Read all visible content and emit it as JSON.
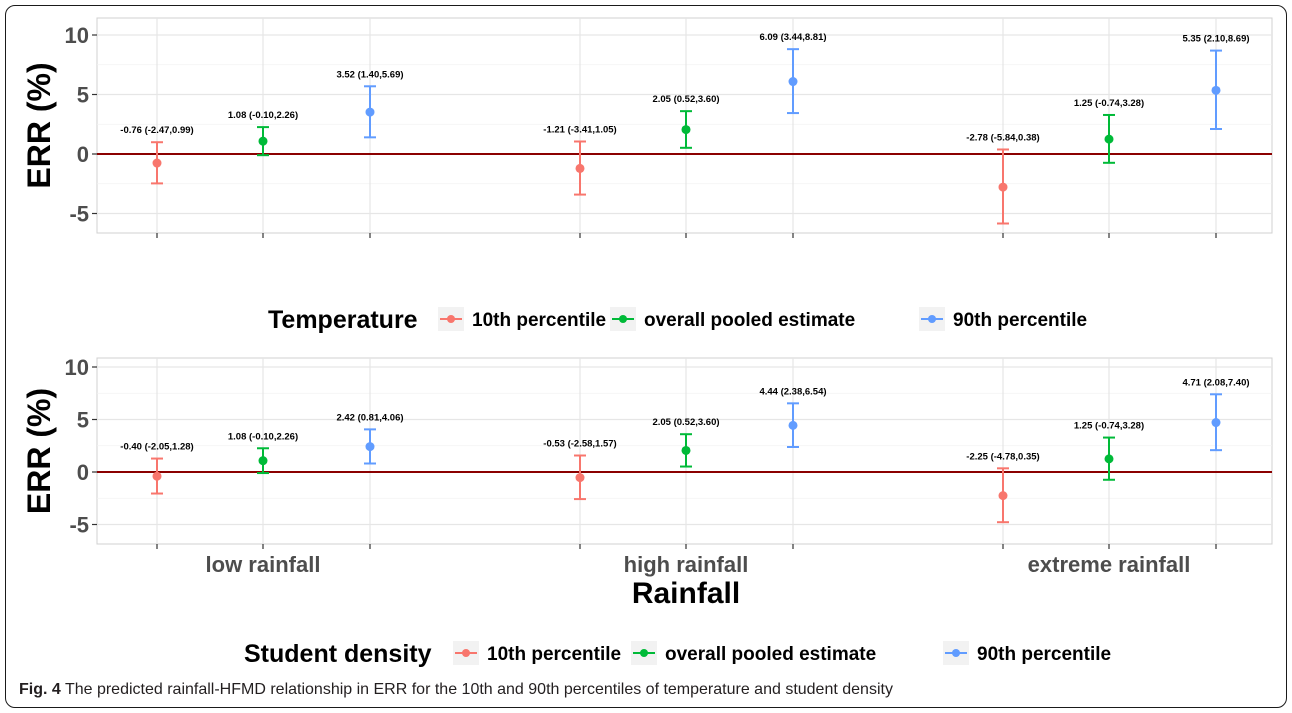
{
  "caption": {
    "label": "Fig. 4",
    "text": "The predicted rainfall-HFMD relationship in ERR for the 10th and 90th percentiles of temperature and student density"
  },
  "x_axis_title": "Rainfall",
  "colors": {
    "low": "#f8766d",
    "mid": "#00ba38",
    "high": "#619cff",
    "ref_line": "#8b0000"
  },
  "chart_data": [
    {
      "type": "scatter",
      "subtype": "point-with-error-bars",
      "categories": [
        "low rainfall",
        "high rainfall",
        "extreme rainfall"
      ],
      "ylabel": "ERR (%)",
      "ylim": [
        -7,
        11
      ],
      "yticks": [
        -5,
        0,
        5,
        10
      ],
      "grid": true,
      "show_xticklabels": false,
      "reference_line": 0,
      "legend": {
        "title": "Temperature",
        "position": "bottom"
      },
      "series": [
        {
          "name": "10th percentile",
          "color": "#f8766d",
          "values": [
            -0.76,
            -1.21,
            -2.78
          ],
          "lower": [
            -2.47,
            -3.41,
            -5.84
          ],
          "upper": [
            0.99,
            1.05,
            0.38
          ],
          "labels": [
            "-0.76 (-2.47,0.99)",
            "-1.21 (-3.41,1.05)",
            "-2.78 (-5.84,0.38)"
          ]
        },
        {
          "name": "overall pooled estimate",
          "color": "#00ba38",
          "values": [
            1.08,
            2.05,
            1.25
          ],
          "lower": [
            -0.1,
            0.52,
            -0.74
          ],
          "upper": [
            2.26,
            3.6,
            3.28
          ],
          "labels": [
            "1.08 (-0.10,2.26)",
            "2.05 (0.52,3.60)",
            "1.25 (-0.74,3.28)"
          ]
        },
        {
          "name": "90th percentile",
          "color": "#619cff",
          "values": [
            3.52,
            6.09,
            5.35
          ],
          "lower": [
            1.4,
            3.44,
            2.1
          ],
          "upper": [
            5.69,
            8.81,
            8.69
          ],
          "labels": [
            "3.52 (1.40,5.69)",
            "6.09 (3.44,8.81)",
            "5.35 (2.10,8.69)"
          ]
        }
      ]
    },
    {
      "type": "scatter",
      "subtype": "point-with-error-bars",
      "categories": [
        "low rainfall",
        "high rainfall",
        "extreme rainfall"
      ],
      "ylabel": "ERR (%)",
      "ylim": [
        -7,
        11
      ],
      "yticks": [
        -5,
        0,
        5,
        10
      ],
      "grid": true,
      "show_xticklabels": true,
      "reference_line": 0,
      "legend": {
        "title": "Student density",
        "position": "bottom"
      },
      "series": [
        {
          "name": "10th percentile",
          "color": "#f8766d",
          "values": [
            -0.4,
            -0.53,
            -2.25
          ],
          "lower": [
            -2.05,
            -2.58,
            -4.78
          ],
          "upper": [
            1.28,
            1.57,
            0.35
          ],
          "labels": [
            "-0.40 (-2.05,1.28)",
            "-0.53 (-2.58,1.57)",
            "-2.25 (-4.78,0.35)"
          ]
        },
        {
          "name": "overall pooled estimate",
          "color": "#00ba38",
          "values": [
            1.08,
            2.05,
            1.25
          ],
          "lower": [
            -0.1,
            0.52,
            -0.74
          ],
          "upper": [
            2.26,
            3.6,
            3.28
          ],
          "labels": [
            "1.08 (-0.10,2.26)",
            "2.05 (0.52,3.60)",
            "1.25 (-0.74,3.28)"
          ]
        },
        {
          "name": "90th percentile",
          "color": "#619cff",
          "values": [
            2.42,
            4.44,
            4.71
          ],
          "lower": [
            0.81,
            2.38,
            2.08
          ],
          "upper": [
            4.06,
            6.54,
            7.4
          ],
          "labels": [
            "2.42 (0.81,4.06)",
            "4.44 (2.38,6.54)",
            "4.71 (2.08,7.40)"
          ]
        }
      ]
    }
  ]
}
